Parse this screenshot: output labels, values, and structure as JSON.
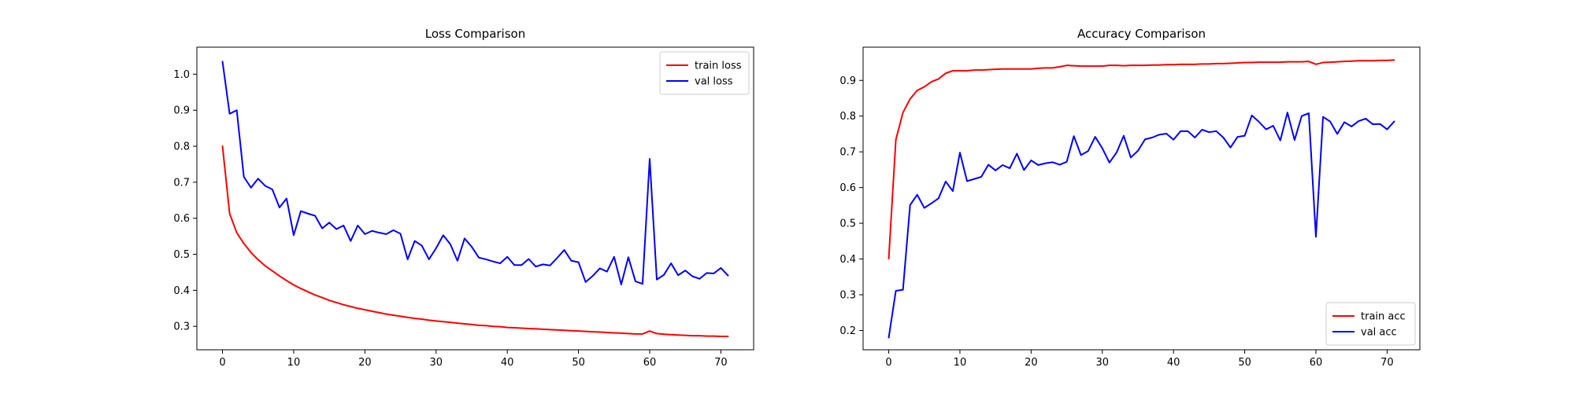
{
  "chart_data": [
    {
      "type": "line",
      "title": "Loss Comparison",
      "xlabel": "",
      "ylabel": "",
      "xlim": [
        -3.6,
        74.6
      ],
      "ylim": [
        0.235,
        1.075
      ],
      "xticks": [
        0,
        10,
        20,
        30,
        40,
        50,
        60,
        70
      ],
      "yticks": [
        0.3,
        0.4,
        0.5,
        0.6,
        0.7,
        0.8,
        0.9,
        1.0
      ],
      "ytick_labels": [
        "0.3",
        "0.4",
        "0.5",
        "0.6",
        "0.7",
        "0.8",
        "0.9",
        "1.0"
      ],
      "legend_position": "upper-right",
      "grid": false,
      "series": [
        {
          "name": "train loss",
          "color": "#ff0000",
          "values": [
            0.8,
            0.613,
            0.56,
            0.53,
            0.505,
            0.485,
            0.468,
            0.454,
            0.44,
            0.427,
            0.415,
            0.405,
            0.396,
            0.387,
            0.38,
            0.372,
            0.366,
            0.36,
            0.355,
            0.35,
            0.346,
            0.342,
            0.338,
            0.334,
            0.331,
            0.328,
            0.325,
            0.322,
            0.32,
            0.317,
            0.315,
            0.313,
            0.311,
            0.309,
            0.307,
            0.305,
            0.303,
            0.302,
            0.3,
            0.299,
            0.297,
            0.296,
            0.295,
            0.294,
            0.293,
            0.292,
            0.291,
            0.29,
            0.289,
            0.288,
            0.287,
            0.286,
            0.285,
            0.284,
            0.283,
            0.282,
            0.281,
            0.28,
            0.279,
            0.279,
            0.287,
            0.28,
            0.278,
            0.277,
            0.276,
            0.275,
            0.274,
            0.274,
            0.273,
            0.273,
            0.272,
            0.272
          ]
        },
        {
          "name": "val loss",
          "color": "#0000ff",
          "values": [
            1.035,
            0.89,
            0.9,
            0.715,
            0.685,
            0.71,
            0.69,
            0.68,
            0.63,
            0.655,
            0.553,
            0.62,
            0.613,
            0.607,
            0.572,
            0.588,
            0.57,
            0.58,
            0.537,
            0.58,
            0.556,
            0.565,
            0.56,
            0.556,
            0.567,
            0.557,
            0.486,
            0.537,
            0.524,
            0.486,
            0.517,
            0.553,
            0.528,
            0.482,
            0.544,
            0.521,
            0.491,
            0.486,
            0.48,
            0.475,
            0.493,
            0.47,
            0.47,
            0.487,
            0.466,
            0.472,
            0.469,
            0.49,
            0.512,
            0.482,
            0.478,
            0.423,
            0.44,
            0.461,
            0.452,
            0.493,
            0.416,
            0.492,
            0.425,
            0.418,
            0.765,
            0.43,
            0.443,
            0.475,
            0.442,
            0.455,
            0.439,
            0.432,
            0.448,
            0.447,
            0.462,
            0.441
          ]
        }
      ]
    },
    {
      "type": "line",
      "title": "Accuracy Comparison",
      "xlabel": "",
      "ylabel": "",
      "xlim": [
        -3.6,
        74.6
      ],
      "ylim": [
        0.146,
        0.993
      ],
      "xticks": [
        0,
        10,
        20,
        30,
        40,
        50,
        60,
        70
      ],
      "yticks": [
        0.2,
        0.3,
        0.4,
        0.5,
        0.6,
        0.7,
        0.8,
        0.9
      ],
      "ytick_labels": [
        "0.2",
        "0.3",
        "0.4",
        "0.5",
        "0.6",
        "0.7",
        "0.8",
        "0.9"
      ],
      "legend_position": "lower-right",
      "grid": false,
      "series": [
        {
          "name": "train acc",
          "color": "#ff0000",
          "values": [
            0.401,
            0.734,
            0.81,
            0.848,
            0.872,
            0.882,
            0.896,
            0.904,
            0.92,
            0.927,
            0.927,
            0.927,
            0.929,
            0.929,
            0.93,
            0.931,
            0.932,
            0.932,
            0.932,
            0.932,
            0.932,
            0.934,
            0.935,
            0.935,
            0.938,
            0.942,
            0.941,
            0.94,
            0.94,
            0.94,
            0.94,
            0.942,
            0.942,
            0.941,
            0.942,
            0.942,
            0.942,
            0.943,
            0.943,
            0.944,
            0.944,
            0.945,
            0.945,
            0.945,
            0.946,
            0.946,
            0.947,
            0.947,
            0.948,
            0.949,
            0.95,
            0.95,
            0.951,
            0.951,
            0.951,
            0.951,
            0.952,
            0.952,
            0.952,
            0.953,
            0.945,
            0.95,
            0.951,
            0.952,
            0.953,
            0.954,
            0.955,
            0.955,
            0.955,
            0.956,
            0.956,
            0.957
          ]
        },
        {
          "name": "val acc",
          "color": "#0000ff",
          "values": [
            0.18,
            0.311,
            0.314,
            0.551,
            0.58,
            0.543,
            0.556,
            0.57,
            0.617,
            0.59,
            0.698,
            0.618,
            0.624,
            0.63,
            0.664,
            0.648,
            0.663,
            0.654,
            0.695,
            0.649,
            0.676,
            0.663,
            0.668,
            0.671,
            0.664,
            0.672,
            0.744,
            0.691,
            0.702,
            0.742,
            0.71,
            0.67,
            0.698,
            0.745,
            0.684,
            0.703,
            0.735,
            0.74,
            0.748,
            0.751,
            0.734,
            0.758,
            0.758,
            0.74,
            0.762,
            0.755,
            0.758,
            0.74,
            0.712,
            0.742,
            0.745,
            0.802,
            0.784,
            0.763,
            0.773,
            0.732,
            0.81,
            0.733,
            0.8,
            0.808,
            0.462,
            0.798,
            0.785,
            0.75,
            0.783,
            0.771,
            0.786,
            0.793,
            0.777,
            0.778,
            0.763,
            0.785
          ]
        }
      ]
    }
  ]
}
